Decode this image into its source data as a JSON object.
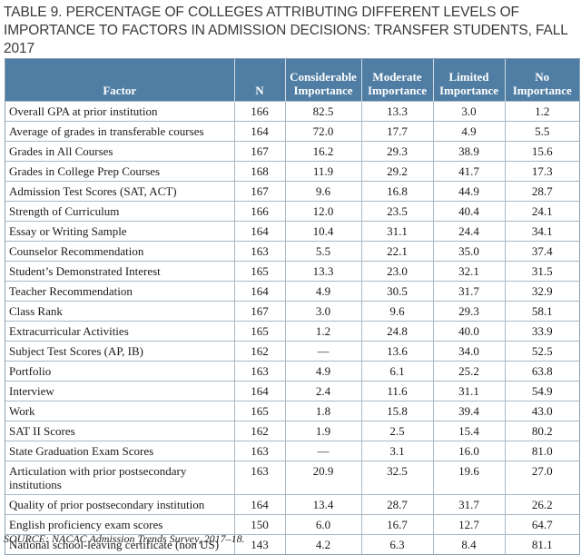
{
  "title": "TABLE 9. PERCENTAGE OF COLLEGES ATTRIBUTING DIFFERENT LEVELS OF IMPORTANCE TO FACTORS IN ADMISSION DECISIONS: TRANSFER STUDENTS, FALL 2017",
  "header": {
    "factor": "Factor",
    "n": "N",
    "considerable": "Considerable Importance",
    "moderate": "Moderate Importance",
    "limited": "Limited Importance",
    "none": "No Importance"
  },
  "rows": [
    {
      "factor": "Overall GPA at prior institution",
      "n": "166",
      "considerable": "82.5",
      "moderate": "13.3",
      "limited": "3.0",
      "none": "1.2"
    },
    {
      "factor": "Average of grades in transferable courses",
      "n": "164",
      "considerable": "72.0",
      "moderate": "17.7",
      "limited": "4.9",
      "none": "5.5"
    },
    {
      "factor": "Grades in All Courses",
      "n": "167",
      "considerable": "16.2",
      "moderate": "29.3",
      "limited": "38.9",
      "none": "15.6"
    },
    {
      "factor": "Grades in College Prep Courses",
      "n": "168",
      "considerable": "11.9",
      "moderate": "29.2",
      "limited": "41.7",
      "none": "17.3"
    },
    {
      "factor": "Admission Test Scores (SAT, ACT)",
      "n": "167",
      "considerable": "9.6",
      "moderate": "16.8",
      "limited": "44.9",
      "none": "28.7"
    },
    {
      "factor": "Strength of Curriculum",
      "n": "166",
      "considerable": "12.0",
      "moderate": "23.5",
      "limited": "40.4",
      "none": "24.1"
    },
    {
      "factor": "Essay or Writing Sample",
      "n": "164",
      "considerable": "10.4",
      "moderate": "31.1",
      "limited": "24.4",
      "none": "34.1"
    },
    {
      "factor": "Counselor Recommendation",
      "n": "163",
      "considerable": "5.5",
      "moderate": "22.1",
      "limited": "35.0",
      "none": "37.4"
    },
    {
      "factor": "Student’s Demonstrated Interest",
      "n": "165",
      "considerable": "13.3",
      "moderate": "23.0",
      "limited": "32.1",
      "none": "31.5"
    },
    {
      "factor": "Teacher Recommendation",
      "n": "164",
      "considerable": "4.9",
      "moderate": "30.5",
      "limited": "31.7",
      "none": "32.9"
    },
    {
      "factor": "Class Rank",
      "n": "167",
      "considerable": "3.0",
      "moderate": "9.6",
      "limited": "29.3",
      "none": "58.1"
    },
    {
      "factor": "Extracurricular Activities",
      "n": "165",
      "considerable": "1.2",
      "moderate": "24.8",
      "limited": "40.0",
      "none": "33.9"
    },
    {
      "factor": "Subject Test Scores (AP, IB)",
      "n": "162",
      "considerable": "—",
      "moderate": "13.6",
      "limited": "34.0",
      "none": "52.5"
    },
    {
      "factor": "Portfolio",
      "n": "163",
      "considerable": "4.9",
      "moderate": "6.1",
      "limited": "25.2",
      "none": "63.8"
    },
    {
      "factor": "Interview",
      "n": "164",
      "considerable": "2.4",
      "moderate": "11.6",
      "limited": "31.1",
      "none": "54.9"
    },
    {
      "factor": "Work",
      "n": "165",
      "considerable": "1.8",
      "moderate": "15.8",
      "limited": "39.4",
      "none": "43.0"
    },
    {
      "factor": "SAT II Scores",
      "n": "162",
      "considerable": "1.9",
      "moderate": "2.5",
      "limited": "15.4",
      "none": "80.2"
    },
    {
      "factor": "State Graduation Exam Scores",
      "n": "163",
      "considerable": "—",
      "moderate": "3.1",
      "limited": "16.0",
      "none": "81.0"
    },
    {
      "factor": "Articulation with prior postsecondary institutions",
      "n": "163",
      "considerable": "20.9",
      "moderate": "32.5",
      "limited": "19.6",
      "none": "27.0",
      "tall": true
    },
    {
      "factor": "Quality of prior postsecondary institution",
      "n": "164",
      "considerable": "13.4",
      "moderate": "28.7",
      "limited": "31.7",
      "none": "26.2"
    },
    {
      "factor": "English proficiency exam scores",
      "n": "150",
      "considerable": "6.0",
      "moderate": "16.7",
      "limited": "12.7",
      "none": "64.7"
    },
    {
      "factor": "National school-leaving certificate (non US)",
      "n": "143",
      "considerable": "4.2",
      "moderate": "6.3",
      "limited": "8.4",
      "none": "81.1"
    }
  ],
  "source": "SOURCE: NACAC Admission Trends Survey, 2017–18."
}
